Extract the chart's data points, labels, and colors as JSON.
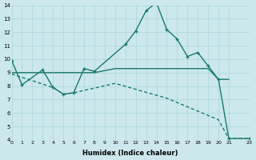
{
  "xlabel": "Humidex (Indice chaleur)",
  "background_color": "#cce8ec",
  "grid_color": "#aad4d8",
  "line_color": "#1a7a6e",
  "xlim": [
    0,
    23
  ],
  "ylim": [
    4,
    14
  ],
  "xtick_vals": [
    0,
    1,
    2,
    3,
    4,
    5,
    6,
    7,
    8,
    9,
    10,
    11,
    12,
    13,
    14,
    15,
    16,
    17,
    18,
    19,
    20,
    21,
    23
  ],
  "ytick_vals": [
    4,
    5,
    6,
    7,
    8,
    9,
    10,
    11,
    12,
    13,
    14
  ],
  "line1_x": [
    0,
    1,
    3,
    4,
    5,
    6,
    7,
    8,
    11,
    12,
    13,
    14,
    15,
    16,
    17,
    18,
    19,
    20,
    21,
    23
  ],
  "line1_y": [
    9.9,
    8.1,
    9.2,
    7.9,
    7.4,
    7.5,
    9.3,
    9.1,
    11.1,
    12.1,
    13.6,
    14.2,
    12.2,
    11.5,
    10.2,
    10.5,
    9.5,
    8.5,
    4.1,
    4.1
  ],
  "line2_x": [
    0,
    3,
    6,
    7,
    8,
    10,
    11,
    12,
    13,
    14,
    15,
    16,
    17,
    18,
    19,
    20,
    21
  ],
  "line2_y": [
    9.0,
    9.0,
    9.0,
    9.0,
    9.0,
    9.3,
    9.3,
    9.3,
    9.3,
    9.3,
    9.3,
    9.3,
    9.3,
    9.3,
    9.3,
    8.5,
    8.5
  ],
  "line3_x": [
    0,
    4,
    5,
    6,
    10,
    15,
    20,
    21,
    23
  ],
  "line3_y": [
    8.9,
    7.9,
    7.4,
    7.5,
    8.2,
    7.1,
    5.5,
    4.1,
    4.1
  ],
  "line_width": 1.0,
  "marker_size": 3.5
}
